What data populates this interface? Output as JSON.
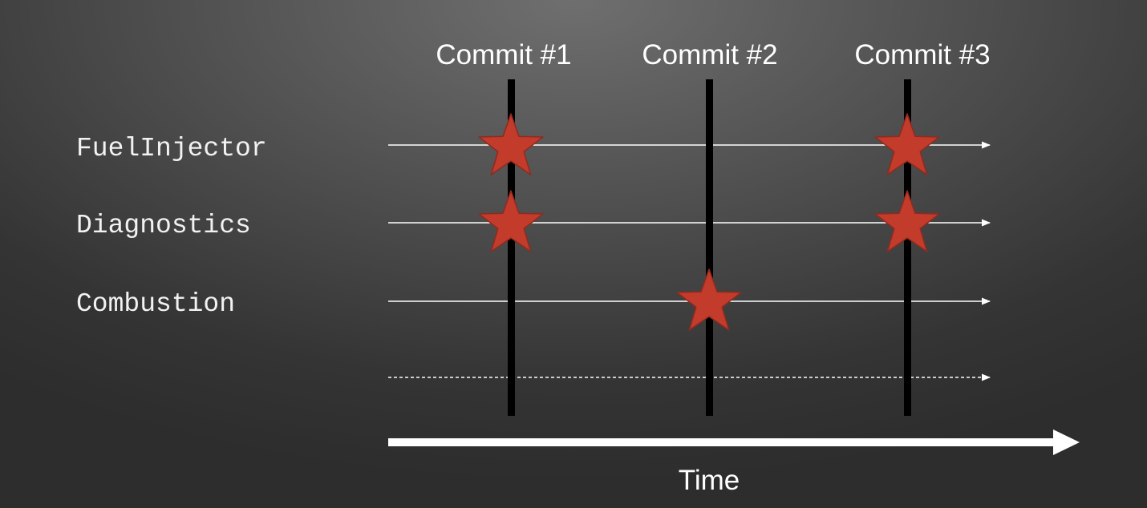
{
  "diagram": {
    "commits": [
      {
        "label": "Commit #1"
      },
      {
        "label": "Commit #2"
      },
      {
        "label": "Commit #3"
      }
    ],
    "modules": [
      {
        "label": "FuelInjector",
        "changed_in": [
          1,
          3
        ]
      },
      {
        "label": "Diagnostics",
        "changed_in": [
          1,
          3
        ]
      },
      {
        "label": "Combustion",
        "changed_in": [
          2
        ]
      },
      {
        "label": "",
        "changed_in": [],
        "dashed": true
      }
    ],
    "axis": {
      "label": "Time"
    },
    "colors": {
      "star": "#c23b2b",
      "star_outline": "#8f2a1f",
      "commit_line": "#000000",
      "module_line": "#ffffff",
      "text": "#ffffff"
    }
  }
}
